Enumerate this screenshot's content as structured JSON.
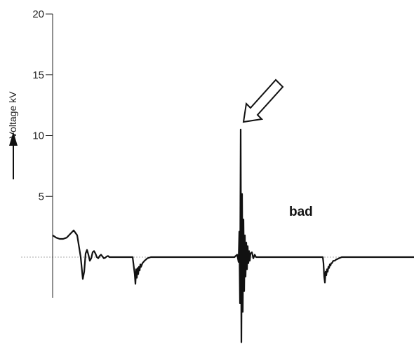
{
  "chart_data": {
    "type": "line",
    "ylabel": "Voltage kV",
    "ylim": [
      -7,
      20
    ],
    "yticks": [
      5,
      10,
      15,
      20
    ],
    "annotation": "bad",
    "series": [
      {
        "x": [
          0,
          5,
          10,
          15,
          20,
          25,
          30,
          35,
          40,
          43,
          45,
          47,
          49,
          51,
          53,
          55,
          57,
          59,
          61,
          63,
          65,
          67,
          69,
          71,
          73,
          75,
          77,
          79,
          81,
          83,
          86,
          90,
          95,
          100,
          105,
          110,
          114,
          117,
          118,
          119,
          120,
          121,
          122,
          123,
          124,
          125,
          126,
          128,
          131,
          135,
          140,
          145,
          150,
          160,
          170,
          180,
          200,
          220,
          240,
          255,
          259,
          263,
          265,
          266,
          267,
          268,
          269,
          270,
          271,
          272,
          273,
          274,
          275,
          276,
          277,
          278,
          279,
          280,
          281,
          282,
          284,
          286,
          288,
          290,
          293,
          297,
          300,
          305,
          310,
          320,
          340,
          360,
          380,
          385,
          386,
          387,
          388,
          389,
          390,
          391,
          392,
          393,
          394,
          395,
          396,
          397,
          398,
          399,
          400,
          402,
          404,
          406,
          408,
          410,
          412,
          415,
          420,
          440,
          460,
          480,
          500,
          520,
          535
        ],
        "y": [
          1.8,
          1.6,
          1.5,
          1.5,
          1.6,
          1.9,
          2.2,
          1.8,
          0,
          -1.8,
          -1.2,
          0.3,
          0.6,
          0.2,
          -0.3,
          -0.1,
          0.4,
          0.5,
          0.3,
          0,
          -0.1,
          0.1,
          0.2,
          0.05,
          -0.1,
          -0.05,
          0.05,
          0.1,
          0,
          0,
          0,
          0,
          0,
          0,
          0,
          0,
          0,
          -1.4,
          -2.2,
          -1.0,
          -1.7,
          -0.9,
          -1.4,
          -0.8,
          -1.1,
          -0.6,
          -0.8,
          -0.5,
          -0.3,
          -0.1,
          0,
          0,
          0,
          0,
          0,
          0,
          0,
          0,
          0,
          0,
          0,
          0.2,
          -0.4,
          2.1,
          -3.8,
          10.5,
          -7.0,
          5.2,
          -4.5,
          3.1,
          -2.8,
          1.8,
          -1.6,
          1.2,
          -1.0,
          0.9,
          -0.5,
          0.5,
          -0.3,
          0.3,
          0.4,
          -0.1,
          0.2,
          0,
          0,
          0,
          0,
          0,
          0,
          0,
          0,
          0,
          0,
          0,
          -0.5,
          -1.6,
          -2.1,
          -1.2,
          -1.5,
          -1.0,
          -1.2,
          -0.8,
          -0.9,
          -0.6,
          -0.7,
          -0.5,
          -0.5,
          -0.4,
          -0.3,
          -0.3,
          -0.2,
          -0.15,
          -0.1,
          -0.05,
          0,
          0,
          0,
          0,
          0,
          0,
          0,
          0,
          0
        ]
      }
    ]
  }
}
